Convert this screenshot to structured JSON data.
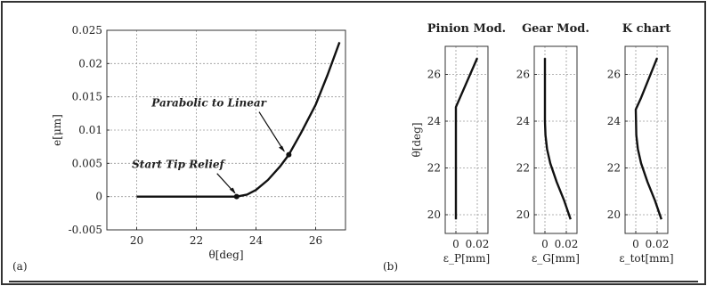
{
  "panel_labels": {
    "a": "(a)",
    "b": "(b)"
  },
  "chart_data": [
    {
      "type": "line",
      "xlabel": "θ[deg]",
      "ylabel": "e[μm]",
      "xlim": [
        19,
        27
      ],
      "ylim": [
        -0.005,
        0.025
      ],
      "x_ticks": [
        "20",
        "22",
        "24",
        "26"
      ],
      "y_ticks": [
        "-0.005",
        "0",
        "0.005",
        "0.01",
        "0.015",
        "0.02",
        "0.025"
      ],
      "grid": true,
      "series": [
        {
          "x": [
            20,
            21,
            22,
            23,
            23.35,
            23.7,
            24.0,
            24.4,
            24.8,
            25.1,
            25.5,
            26.0,
            26.4,
            26.8
          ],
          "y": [
            0,
            0,
            0,
            0,
            0,
            0.0003,
            0.001,
            0.0025,
            0.0045,
            0.0063,
            0.0095,
            0.0138,
            0.0183,
            0.0232
          ]
        }
      ],
      "points": [
        {
          "x": 23.35,
          "y": 0
        },
        {
          "x": 25.1,
          "y": 0.0063
        }
      ],
      "annotations": [
        {
          "text": "Parabolic to Linear",
          "x": 25.0,
          "y": 0.0063
        },
        {
          "text": "Start Tip Relief",
          "x": 23.35,
          "y": 0
        }
      ]
    },
    {
      "type": "line",
      "title": "Pinion Mod.",
      "xlabel": "ε_P[mm]",
      "ylabel": "θ[deg]",
      "xlim": [
        -0.01,
        0.03
      ],
      "ylim": [
        19.2,
        27.2
      ],
      "x_ticks": [
        "0",
        "0.02"
      ],
      "y_ticks": [
        "20",
        "22",
        "24",
        "26"
      ],
      "grid": true,
      "series": [
        {
          "x": [
            0,
            0,
            0,
            0.02
          ],
          "y": [
            19.8,
            23.0,
            24.6,
            26.7
          ]
        }
      ]
    },
    {
      "type": "line",
      "title": "Gear Mod.",
      "xlabel": "ε_G[mm]",
      "ylabel": "",
      "xlim": [
        -0.01,
        0.03
      ],
      "ylim": [
        19.2,
        27.2
      ],
      "x_ticks": [
        "0",
        "0.02"
      ],
      "y_ticks": [
        "20",
        "22",
        "24",
        "26"
      ],
      "grid": true,
      "series": [
        {
          "x": [
            0.024,
            0.018,
            0.011,
            0.005,
            0.002,
            0.0005,
            0,
            0
          ],
          "y": [
            19.8,
            20.6,
            21.4,
            22.2,
            22.8,
            23.4,
            24.0,
            26.7
          ]
        }
      ]
    },
    {
      "type": "line",
      "title": "K chart",
      "xlabel": "ε_tot[mm]",
      "ylabel": "",
      "xlim": [
        -0.01,
        0.03
      ],
      "ylim": [
        19.2,
        27.2
      ],
      "x_ticks": [
        "0",
        "0.02"
      ],
      "y_ticks": [
        "20",
        "22",
        "24",
        "26"
      ],
      "grid": true,
      "series": [
        {
          "x": [
            0.024,
            0.018,
            0.011,
            0.005,
            0.002,
            0.0005,
            0,
            0.005,
            0.02
          ],
          "y": [
            19.8,
            20.6,
            21.4,
            22.2,
            22.8,
            23.4,
            24.5,
            25.0,
            26.7
          ]
        }
      ]
    }
  ]
}
